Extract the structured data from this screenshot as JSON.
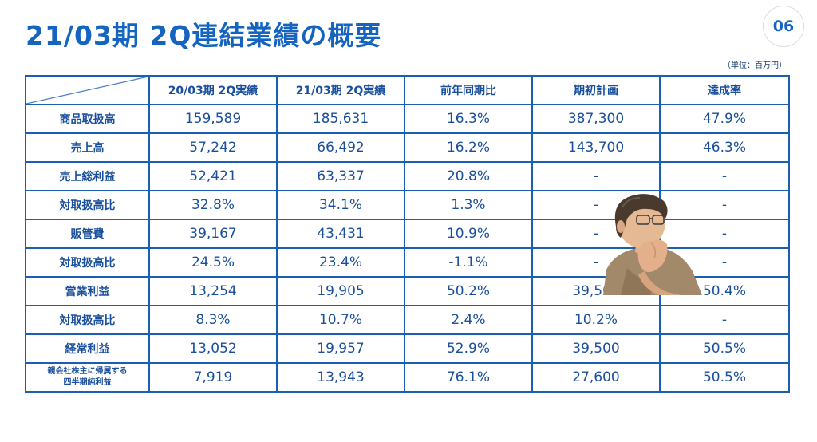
{
  "title": "21/03期 2Q連結業績の概要",
  "page_number": "06",
  "unit": "（単位：百万円）",
  "table": {
    "headers": [
      "",
      "20/03期 2Q実績",
      "21/03期 2Q実績",
      "前年同期比",
      "期初計画",
      "達成率"
    ],
    "rows": [
      {
        "label": "商品取扱高",
        "values": [
          "159,589",
          "185,631",
          "16.3%",
          "387,300",
          "47.9%"
        ]
      },
      {
        "label": "売上高",
        "values": [
          "57,242",
          "66,492",
          "16.2%",
          "143,700",
          "46.3%"
        ]
      },
      {
        "label": "売上総利益",
        "values": [
          "52,421",
          "63,337",
          "20.8%",
          "-",
          "-"
        ]
      },
      {
        "label": "対取扱高比",
        "values": [
          "32.8%",
          "34.1%",
          "1.3%",
          "-",
          "-"
        ]
      },
      {
        "label": "販管費",
        "values": [
          "39,167",
          "43,431",
          "10.9%",
          "-",
          "-"
        ]
      },
      {
        "label": "対取扱高比",
        "values": [
          "24.5%",
          "23.4%",
          "-1.1%",
          "-",
          "-"
        ]
      },
      {
        "label": "営業利益",
        "values": [
          "13,254",
          "19,905",
          "50.2%",
          "39,500",
          "50.4%"
        ]
      },
      {
        "label": "対取扱高比",
        "values": [
          "8.3%",
          "10.7%",
          "2.4%",
          "10.2%",
          "-"
        ]
      },
      {
        "label": "経常利益",
        "values": [
          "13,052",
          "19,957",
          "52.9%",
          "39,500",
          "50.5%"
        ]
      },
      {
        "label_line1": "親会社株主に帰属する",
        "label_line2": "四半期純利益",
        "values": [
          "7,919",
          "13,943",
          "76.1%",
          "27,600",
          "50.5%"
        ]
      }
    ]
  }
}
